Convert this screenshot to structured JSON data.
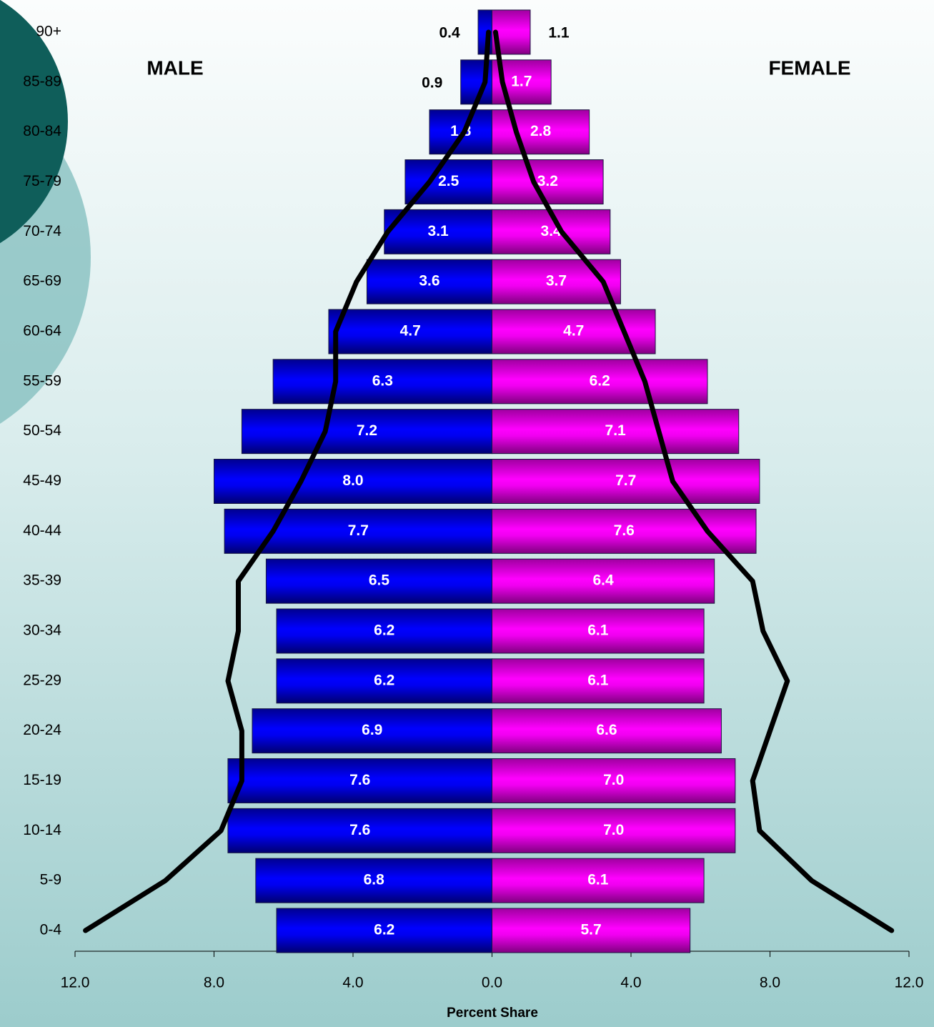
{
  "chart_data": {
    "type": "pyramid",
    "x_label": "Percent Share",
    "categories": [
      "90+",
      "85-89",
      "80-84",
      "75-79",
      "70-74",
      "65-69",
      "60-64",
      "55-59",
      "50-54",
      "45-49",
      "40-44",
      "35-39",
      "30-34",
      "25-29",
      "20-24",
      "15-19",
      "10-14",
      "5-9",
      "0-4"
    ],
    "series": [
      {
        "name": "MALE",
        "color": "#0000ff",
        "values": [
          0.4,
          0.9,
          1.8,
          2.5,
          3.1,
          3.6,
          4.7,
          6.3,
          7.2,
          8.0,
          7.7,
          6.5,
          6.2,
          6.2,
          6.9,
          7.6,
          7.6,
          6.8,
          6.2
        ],
        "value_labels": [
          "0.4",
          "0.9",
          "1.8",
          "2.5",
          "3.1",
          "3.6",
          "4.7",
          "6.3",
          "7.2",
          "8.0",
          "7.7",
          "6.5",
          "6.2",
          "6.2",
          "6.9",
          "7.6",
          "7.6",
          "6.8",
          "6.2"
        ]
      },
      {
        "name": "FEMALE",
        "color": "#ff00ff",
        "values": [
          1.1,
          1.7,
          2.8,
          3.2,
          3.4,
          3.7,
          4.7,
          6.2,
          7.1,
          7.7,
          7.6,
          6.4,
          6.1,
          6.1,
          6.6,
          7.0,
          7.0,
          6.1,
          5.7
        ],
        "value_labels": [
          "1.1",
          "1.7",
          "2.8",
          "3.2",
          "3.4",
          "3.7",
          "4.7",
          "6.2",
          "7.1",
          "7.7",
          "7.6",
          "6.4",
          "6.1",
          "6.1",
          "6.6",
          "7.0",
          "7.0",
          "6.1",
          "5.7"
        ]
      }
    ],
    "lines": [
      {
        "color": "#000000",
        "values": [
          0.1,
          0.2,
          0.8,
          1.8,
          3.0,
          3.9,
          4.5,
          4.5,
          4.8,
          5.5,
          6.3,
          7.3,
          7.3,
          7.6,
          7.2,
          7.2,
          7.8,
          9.4,
          11.7
        ]
      },
      {
        "color": "#000000",
        "values": [
          0.1,
          0.3,
          0.7,
          1.2,
          2.0,
          3.2,
          3.8,
          4.4,
          4.8,
          5.2,
          6.2,
          7.5,
          7.8,
          8.5,
          8.0,
          7.5,
          7.7,
          9.2,
          11.5
        ]
      }
    ],
    "xlim": [
      -12,
      12
    ],
    "xticks": [
      {
        "value": -12,
        "label": "12.0"
      },
      {
        "value": -8,
        "label": "8.0"
      },
      {
        "value": -4,
        "label": "4.0"
      },
      {
        "value": 0,
        "label": "0.0"
      },
      {
        "value": 4,
        "label": "4.0"
      },
      {
        "value": 8,
        "label": "8.0"
      },
      {
        "value": 12,
        "label": "12.0"
      }
    ]
  }
}
